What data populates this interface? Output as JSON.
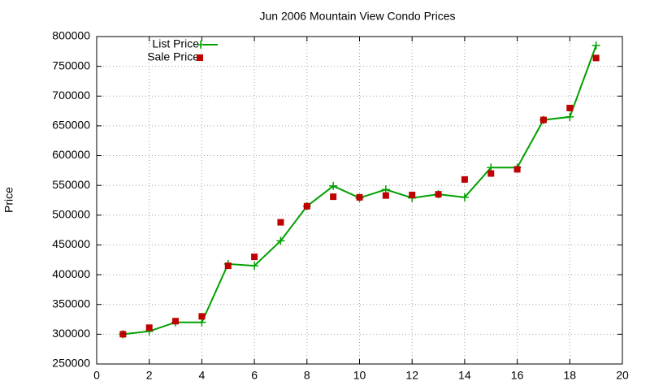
{
  "chart_data": {
    "type": "line",
    "title": "Jun 2006 Mountain View Condo Prices",
    "y_label": "Price",
    "x": [
      1,
      2,
      3,
      4,
      5,
      6,
      7,
      8,
      9,
      10,
      11,
      12,
      13,
      14,
      15,
      16,
      17,
      18,
      19
    ],
    "series": [
      {
        "name": "List Price",
        "color": "#00a000",
        "line": true,
        "marker": "plus",
        "values": [
          300000,
          305000,
          320000,
          320000,
          418000,
          415000,
          457000,
          515000,
          549000,
          529000,
          543000,
          529000,
          535000,
          530000,
          580000,
          580000,
          660000,
          665000,
          785000
        ]
      },
      {
        "name": "Sale Price",
        "color": "#c00000",
        "line": false,
        "marker": "square",
        "values": [
          300000,
          311000,
          322000,
          330000,
          415000,
          430000,
          488000,
          515000,
          531000,
          530000,
          533000,
          534000,
          535000,
          560000,
          570000,
          577000,
          660000,
          680000,
          764000
        ]
      }
    ],
    "xlim": [
      0,
      20
    ],
    "xticks": [
      0,
      2,
      4,
      6,
      8,
      10,
      12,
      14,
      16,
      18,
      20
    ],
    "ylim": [
      250000,
      800000
    ],
    "yticks": [
      250000,
      300000,
      350000,
      400000,
      450000,
      500000,
      550000,
      600000,
      650000,
      700000,
      750000,
      800000
    ],
    "grid": true,
    "legend": "top-left"
  }
}
